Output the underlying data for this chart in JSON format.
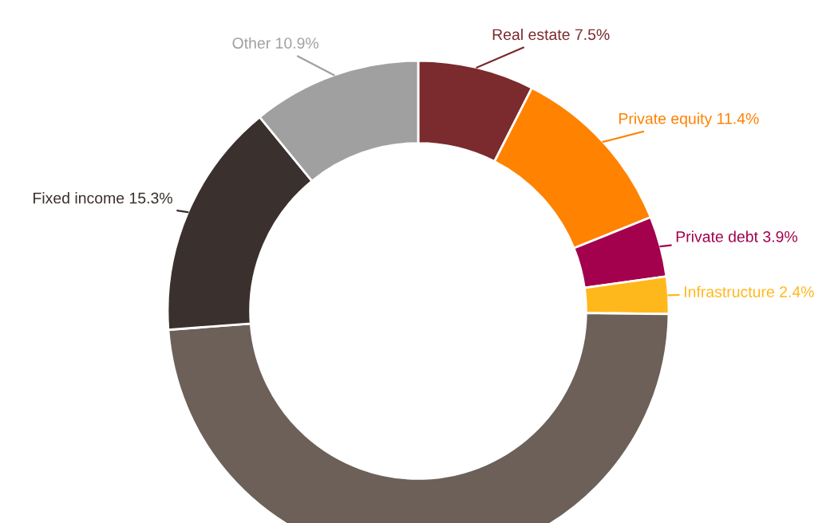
{
  "chart_data": {
    "type": "donut",
    "categories": [
      "Real estate",
      "Private equity",
      "Private debt",
      "Infrastructure",
      null,
      "Fixed income",
      "Other"
    ],
    "values": [
      7.5,
      11.4,
      3.9,
      2.4,
      48.6,
      15.3,
      10.9
    ],
    "value_labels": [
      "7.5%",
      "11.4%",
      "3.9%",
      "2.4%",
      null,
      "15.3%",
      "10.9%"
    ],
    "colors": [
      "#7b2a2e",
      "#ff8200",
      "#a3004d",
      "#ffb81c",
      "#6c6058",
      "#3a302d",
      "#a0a0a0"
    ],
    "legend": false
  }
}
